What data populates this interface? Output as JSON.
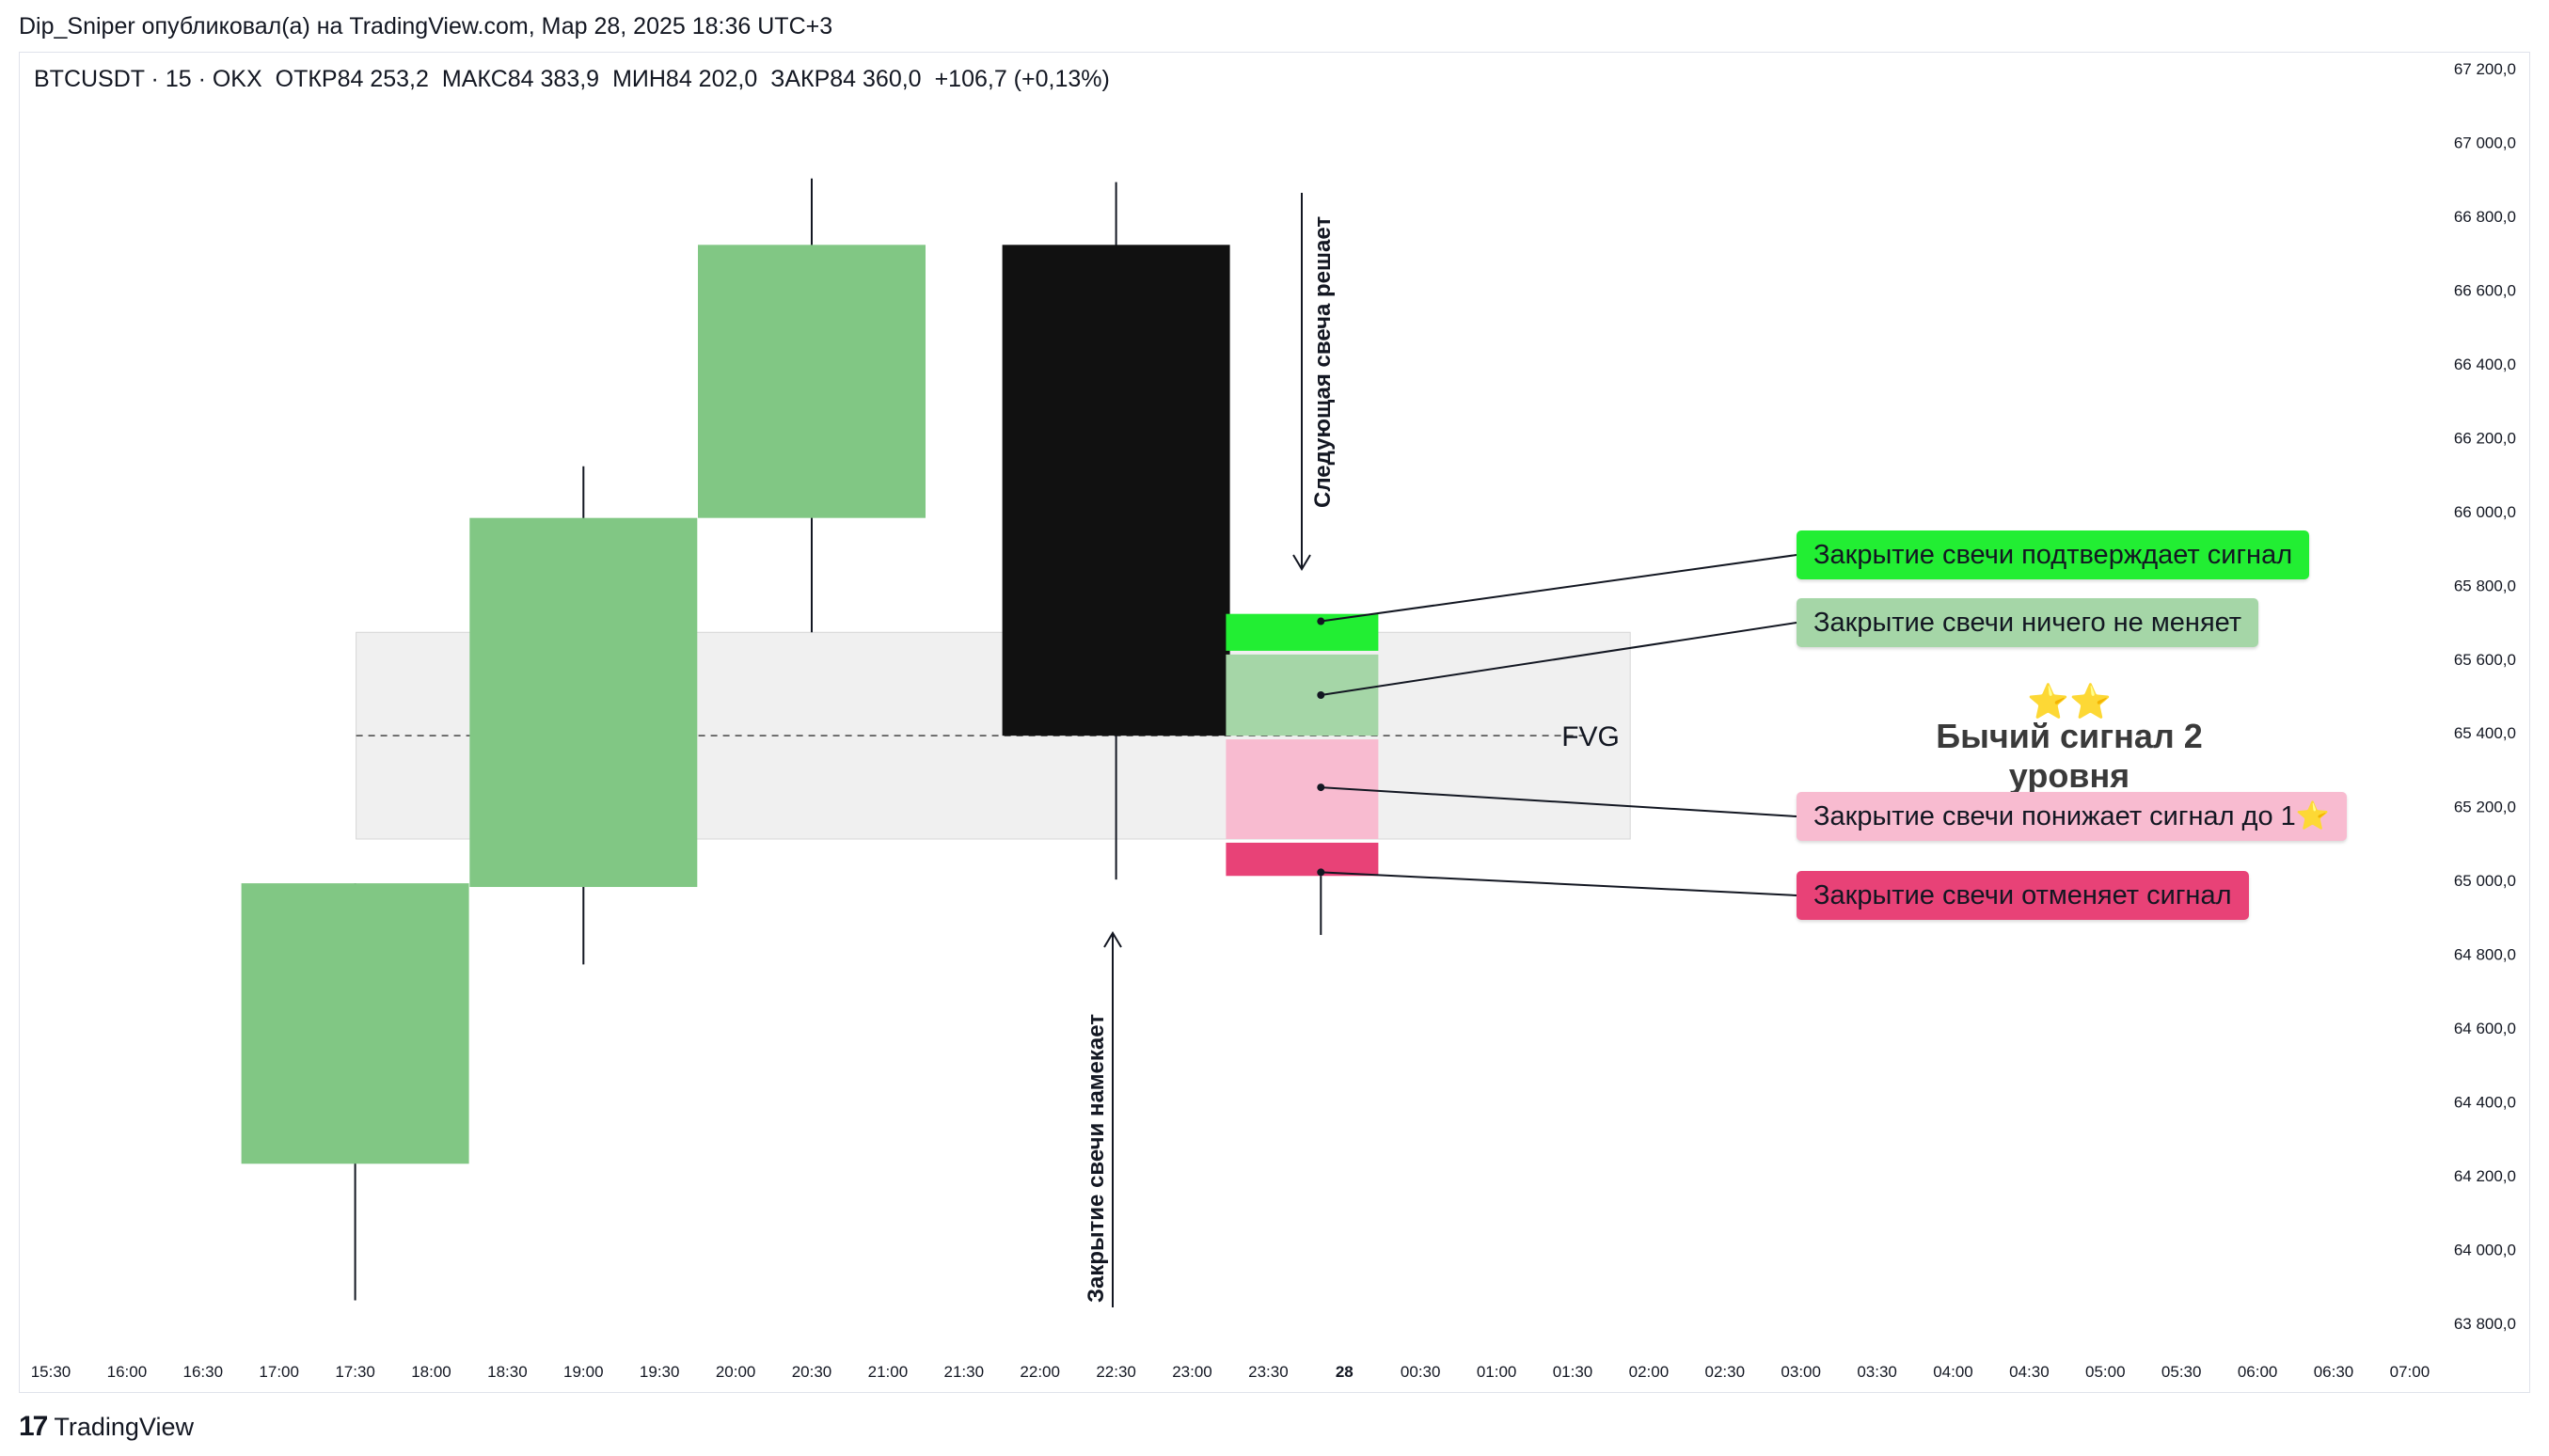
{
  "publisher_line": "Dip_Sniper опубликовал(а) на TradingView.com, Мар 28, 2025 18:36 UTC+3",
  "symbol_bar": {
    "symbol": "BTCUSDT · 15 · OKX",
    "open": "ОТКР84 253,2",
    "high": "МАКС84 383,9",
    "low": "МИН84 202,0",
    "close": "ЗАКР84 360,0",
    "change": "+106,7 (+0,13%)"
  },
  "footer": {
    "logo_text": "TradingView"
  },
  "colors": {
    "bull": "#81c784",
    "black_candle": "#111111",
    "fvg_zone": "#f0f0f0",
    "confirm": "#22ee33",
    "neutral": "#a5d6a7",
    "downgrade": "#f8bbd0",
    "cancel": "#e84277"
  },
  "annotations": {
    "fvg_label": "FVG",
    "arrow_top": "Следующая свеча решает",
    "arrow_bottom": "Закрытие свечи намекает",
    "signal_stars": "⭐⭐",
    "signal_title": "Бычий сигнал 2 уровня",
    "callout_confirm": "Закрытие свечи подтверждает сигнал",
    "callout_neutral": "Закрытие свечи ничего не меняет",
    "callout_downgrade": "Закрытие свечи понижает сигнал до 1⭐",
    "callout_cancel": "Закрытие свечи отменяет сигнал"
  },
  "chart_data": {
    "type": "candlestick",
    "y_ticks": [
      "67 200,0",
      "67 000,0",
      "66 800,0",
      "66 600,0",
      "66 400,0",
      "66 200,0",
      "66 000,0",
      "65 800,0",
      "65 600,0",
      "65 400,0",
      "65 200,0",
      "65 000,0",
      "64 800,0",
      "64 600,0",
      "64 400,0",
      "64 200,0",
      "64 000,0",
      "63 800,0"
    ],
    "x_ticks": [
      "15:30",
      "16:00",
      "16:30",
      "17:00",
      "17:30",
      "18:00",
      "18:30",
      "19:00",
      "19:30",
      "20:00",
      "20:30",
      "21:00",
      "21:30",
      "22:00",
      "22:30",
      "23:00",
      "23:30",
      "28",
      "00:30",
      "01:00",
      "01:30",
      "02:00",
      "02:30",
      "03:00",
      "03:30",
      "04:00",
      "04:30",
      "05:00",
      "05:30",
      "06:00",
      "06:30",
      "07:00"
    ],
    "ylim": [
      63750,
      67250
    ],
    "candles": [
      {
        "time": "17:30",
        "open": 64230,
        "high": 64990,
        "low": 63860,
        "close": 64990,
        "color": "bull"
      },
      {
        "time": "19:00",
        "open": 64980,
        "high": 66120,
        "low": 64770,
        "close": 65980,
        "color": "bull"
      },
      {
        "time": "20:30",
        "open": 65980,
        "high": 66900,
        "low": 65670,
        "close": 66720,
        "color": "bull"
      },
      {
        "time": "22:30",
        "open": 65390,
        "high": 66890,
        "low": 65000,
        "close": 66720,
        "color": "black_candle"
      }
    ],
    "fvg": {
      "top": 65670,
      "bottom": 65110,
      "mid": 65390,
      "from": "17:30",
      "to": "00:30"
    },
    "next_candle_zones": [
      {
        "name": "confirm",
        "from": 65620,
        "to": 65720
      },
      {
        "name": "neutral",
        "from": 65390,
        "to": 65610
      },
      {
        "name": "downgrade",
        "from": 65110,
        "to": 65380
      },
      {
        "name": "cancel",
        "from": 65010,
        "to": 65100
      }
    ]
  }
}
